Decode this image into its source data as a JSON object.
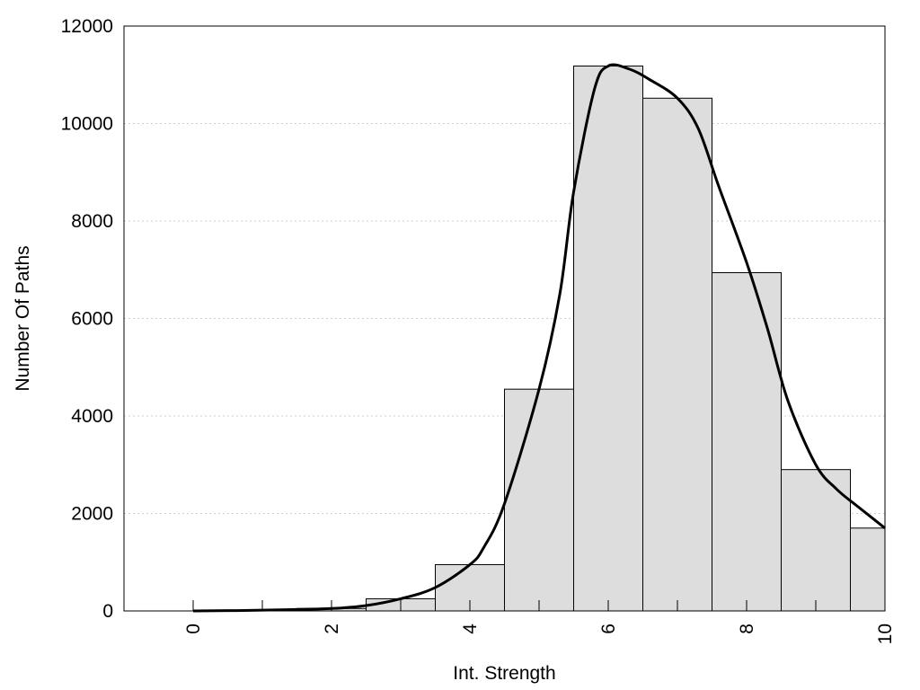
{
  "chart_data": {
    "type": "bar",
    "title": "",
    "xlabel": "Int. Strength",
    "ylabel": "Number Of Paths",
    "xlim": [
      -1,
      10
    ],
    "ylim": [
      0,
      12000
    ],
    "x_ticks": [
      0,
      2,
      4,
      6,
      8,
      10
    ],
    "y_ticks": [
      0,
      2000,
      4000,
      6000,
      8000,
      10000,
      12000
    ],
    "grid": "horizontal dotted",
    "bar_color": "#dddddd",
    "bar_edge_color": "#000000",
    "bars": [
      {
        "x": 0,
        "value": 0
      },
      {
        "x": 1,
        "value": 0
      },
      {
        "x": 2,
        "value": 50
      },
      {
        "x": 3,
        "value": 250
      },
      {
        "x": 4,
        "value": 950
      },
      {
        "x": 5,
        "value": 4550
      },
      {
        "x": 6,
        "value": 11180
      },
      {
        "x": 7,
        "value": 10520
      },
      {
        "x": 8,
        "value": 6940
      },
      {
        "x": 9,
        "value": 2900
      },
      {
        "x": 10,
        "value": 1700
      }
    ],
    "curve": {
      "x": [
        0,
        1,
        2,
        2.5,
        3,
        3.5,
        4,
        4.2,
        4.5,
        5,
        5.3,
        5.5,
        5.8,
        6,
        6.3,
        6.6,
        7,
        7.3,
        7.6,
        8,
        8.3,
        8.6,
        9,
        9.3,
        9.6,
        10
      ],
      "y": [
        0,
        15,
        50,
        110,
        250,
        480,
        950,
        1300,
        2200,
        4550,
        6500,
        8600,
        10700,
        11180,
        11120,
        10900,
        10520,
        9900,
        8700,
        7150,
        5800,
        4300,
        3000,
        2500,
        2150,
        1700
      ]
    }
  }
}
